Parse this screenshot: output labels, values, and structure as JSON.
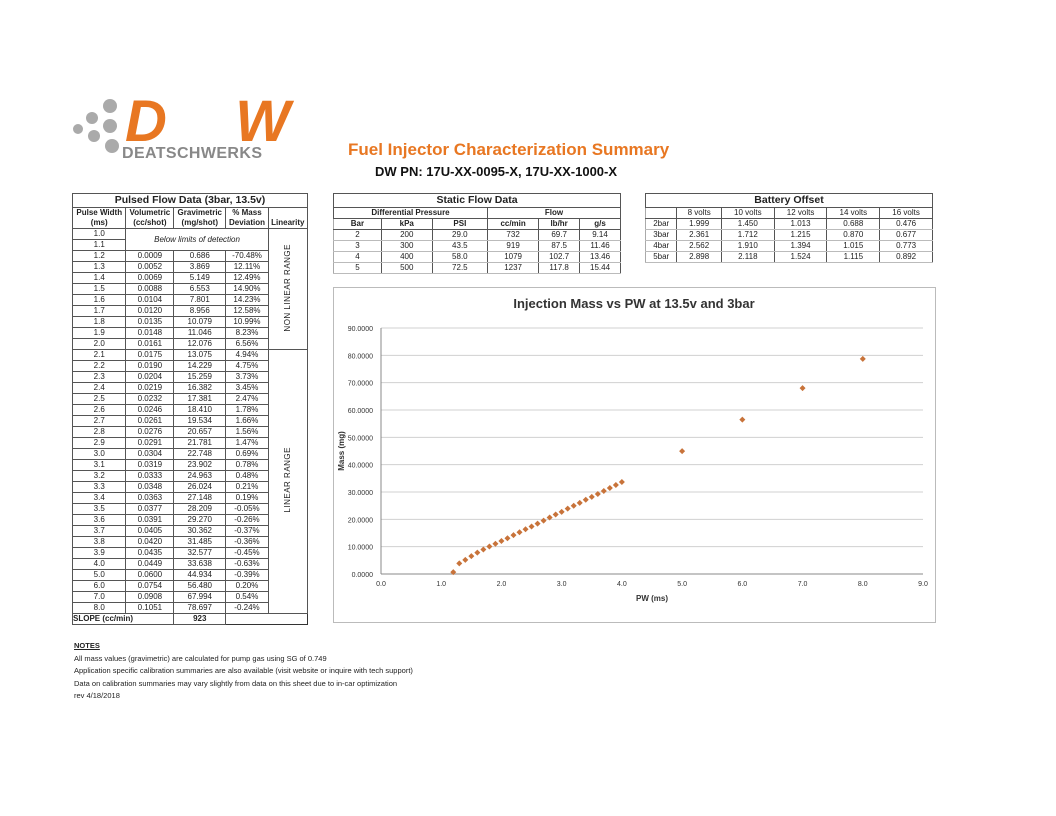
{
  "header": {
    "logo_text": "DEATSCHWERKS",
    "logo_mark": "DW",
    "title": "Fuel Injector Characterization Summary",
    "part_number": "DW PN: 17U-XX-0095-X, 17U-XX-1000-X",
    "brand_color": "#e87722"
  },
  "pulsed": {
    "title": "Pulsed Flow Data (3bar, 13.5v)",
    "headers": [
      [
        "Pulse Width",
        "(ms)"
      ],
      [
        "Volumetric",
        "(cc/shot)"
      ],
      [
        "Gravimetric",
        "(mg/shot)"
      ],
      [
        "% Mass",
        "Deviation"
      ],
      [
        "",
        "Linearity"
      ]
    ],
    "below_limit_text": "Below limits of detection",
    "below_limit_rows": [
      "1.0",
      "1.1"
    ],
    "nonlinear_label": "NON LINEAR RANGE",
    "linear_label": "LINEAR RANGE",
    "rows": [
      [
        "1.2",
        "0.0009",
        "0.686",
        "-70.48%"
      ],
      [
        "1.3",
        "0.0052",
        "3.869",
        "12.11%"
      ],
      [
        "1.4",
        "0.0069",
        "5.149",
        "12.49%"
      ],
      [
        "1.5",
        "0.0088",
        "6.553",
        "14.90%"
      ],
      [
        "1.6",
        "0.0104",
        "7.801",
        "14.23%"
      ],
      [
        "1.7",
        "0.0120",
        "8.956",
        "12.58%"
      ],
      [
        "1.8",
        "0.0135",
        "10.079",
        "10.99%"
      ],
      [
        "1.9",
        "0.0148",
        "11.046",
        "8.23%"
      ],
      [
        "2.0",
        "0.0161",
        "12.076",
        "6.56%"
      ],
      [
        "2.1",
        "0.0175",
        "13.075",
        "4.94%"
      ],
      [
        "2.2",
        "0.0190",
        "14.229",
        "4.75%"
      ],
      [
        "2.3",
        "0.0204",
        "15.259",
        "3.73%"
      ],
      [
        "2.4",
        "0.0219",
        "16.382",
        "3.45%"
      ],
      [
        "2.5",
        "0.0232",
        "17.381",
        "2.47%"
      ],
      [
        "2.6",
        "0.0246",
        "18.410",
        "1.78%"
      ],
      [
        "2.7",
        "0.0261",
        "19.534",
        "1.66%"
      ],
      [
        "2.8",
        "0.0276",
        "20.657",
        "1.56%"
      ],
      [
        "2.9",
        "0.0291",
        "21.781",
        "1.47%"
      ],
      [
        "3.0",
        "0.0304",
        "22.748",
        "0.69%"
      ],
      [
        "3.1",
        "0.0319",
        "23.902",
        "0.78%"
      ],
      [
        "3.2",
        "0.0333",
        "24.963",
        "0.48%"
      ],
      [
        "3.3",
        "0.0348",
        "26.024",
        "0.21%"
      ],
      [
        "3.4",
        "0.0363",
        "27.148",
        "0.19%"
      ],
      [
        "3.5",
        "0.0377",
        "28.209",
        "-0.05%"
      ],
      [
        "3.6",
        "0.0391",
        "29.270",
        "-0.26%"
      ],
      [
        "3.7",
        "0.0405",
        "30.362",
        "-0.37%"
      ],
      [
        "3.8",
        "0.0420",
        "31.485",
        "-0.36%"
      ],
      [
        "3.9",
        "0.0435",
        "32.577",
        "-0.45%"
      ],
      [
        "4.0",
        "0.0449",
        "33.638",
        "-0.63%"
      ],
      [
        "5.0",
        "0.0600",
        "44.934",
        "-0.39%"
      ],
      [
        "6.0",
        "0.0754",
        "56.480",
        "0.20%"
      ],
      [
        "7.0",
        "0.0908",
        "67.994",
        "0.54%"
      ],
      [
        "8.0",
        "0.1051",
        "78.697",
        "-0.24%"
      ]
    ],
    "slope_label": "SLOPE (cc/min)",
    "slope_value": "923"
  },
  "static": {
    "title": "Static Flow Data",
    "group1": "Differential Pressure",
    "group2": "Flow",
    "headers": [
      "Bar",
      "kPa",
      "PSI",
      "cc/min",
      "lb/hr",
      "g/s"
    ],
    "rows": [
      [
        "2",
        "200",
        "29.0",
        "732",
        "69.7",
        "9.14"
      ],
      [
        "3",
        "300",
        "43.5",
        "919",
        "87.5",
        "11.46"
      ],
      [
        "4",
        "400",
        "58.0",
        "1079",
        "102.7",
        "13.46"
      ],
      [
        "5",
        "500",
        "72.5",
        "1237",
        "117.8",
        "15.44"
      ]
    ]
  },
  "battery": {
    "title": "Battery Offset",
    "headers": [
      "",
      "8 volts",
      "10 volts",
      "12 volts",
      "14 volts",
      "16 volts"
    ],
    "rows": [
      [
        "2bar",
        "1.999",
        "1.450",
        "1.013",
        "0.688",
        "0.476"
      ],
      [
        "3bar",
        "2.361",
        "1.712",
        "1.215",
        "0.870",
        "0.677"
      ],
      [
        "4bar",
        "2.562",
        "1.910",
        "1.394",
        "1.015",
        "0.773"
      ],
      [
        "5bar",
        "2.898",
        "2.118",
        "1.524",
        "1.115",
        "0.892"
      ]
    ]
  },
  "notes": {
    "heading": "NOTES",
    "lines": [
      "All mass values (gravimetric) are calculated for pump gas using SG of 0.749",
      "Application specific calibration summaries are also available (visit website or inquire with tech support)",
      "Data on calibration summaries may vary slightly from data on this sheet due to in-car optimization",
      "rev 4/18/2018"
    ]
  },
  "chart_data": {
    "type": "scatter",
    "title": "Injection Mass vs PW at 13.5v and 3bar",
    "xlabel": "PW (ms)",
    "ylabel": "Mass (mg)",
    "xlim": [
      0,
      9
    ],
    "ylim": [
      0,
      90
    ],
    "grid": true,
    "marker_color": "#c8733a",
    "xticks": [
      "0.0",
      "1.0",
      "2.0",
      "3.0",
      "4.0",
      "5.0",
      "6.0",
      "7.0",
      "8.0",
      "9.0"
    ],
    "yticks": [
      "0.0000",
      "10.0000",
      "20.0000",
      "30.0000",
      "40.0000",
      "50.0000",
      "60.0000",
      "70.0000",
      "80.0000",
      "90.0000"
    ],
    "x": [
      1.2,
      1.3,
      1.4,
      1.5,
      1.6,
      1.7,
      1.8,
      1.9,
      2.0,
      2.1,
      2.2,
      2.3,
      2.4,
      2.5,
      2.6,
      2.7,
      2.8,
      2.9,
      3.0,
      3.1,
      3.2,
      3.3,
      3.4,
      3.5,
      3.6,
      3.7,
      3.8,
      3.9,
      4.0,
      5.0,
      6.0,
      7.0,
      8.0
    ],
    "y": [
      0.686,
      3.869,
      5.149,
      6.553,
      7.801,
      8.956,
      10.079,
      11.046,
      12.076,
      13.075,
      14.229,
      15.259,
      16.382,
      17.381,
      18.41,
      19.534,
      20.657,
      21.781,
      22.748,
      23.902,
      24.963,
      26.024,
      27.148,
      28.209,
      29.27,
      30.362,
      31.485,
      32.577,
      33.638,
      44.934,
      56.48,
      67.994,
      78.697
    ]
  }
}
